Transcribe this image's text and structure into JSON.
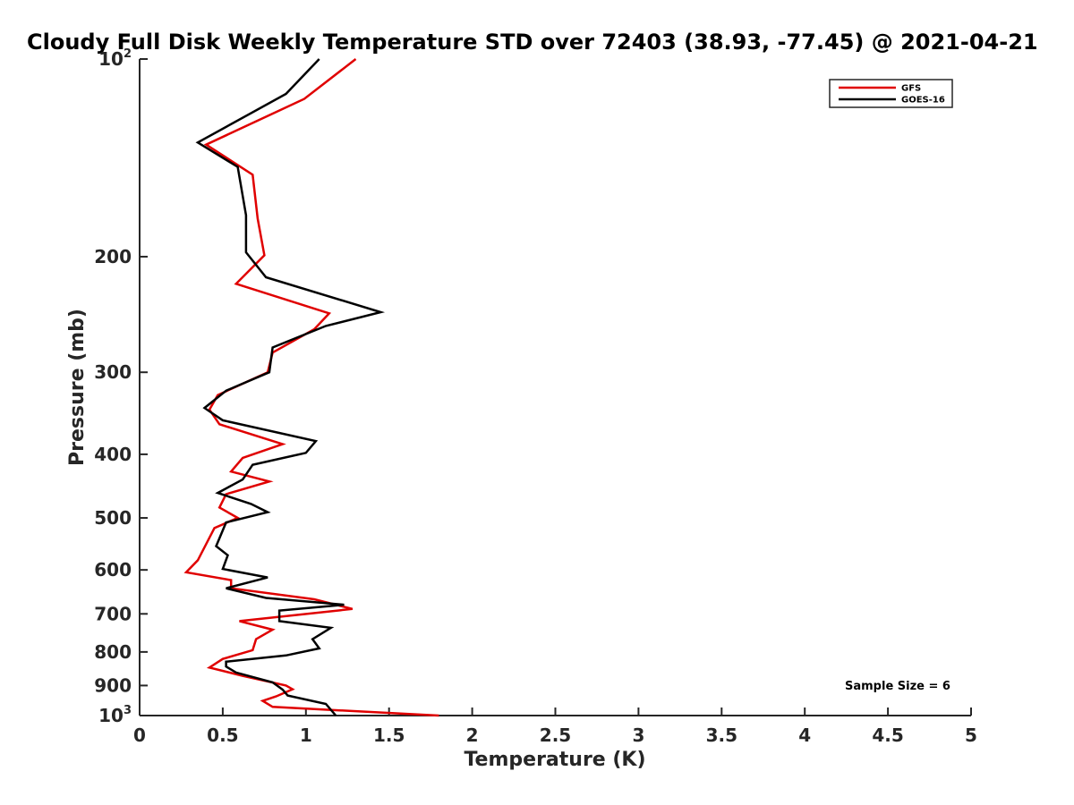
{
  "chart_data": {
    "type": "line",
    "title": "Cloudy Full Disk Weekly Temperature STD over 72403 (38.93, -77.45) @ 2021-04-21",
    "xlabel": "Temperature (K)",
    "ylabel": "Pressure (mb)",
    "xlim": [
      0,
      5
    ],
    "ylim": [
      100,
      1000
    ],
    "y_scale": "log",
    "y_reversed": true,
    "x_ticks": [
      {
        "value": 0,
        "label": "0"
      },
      {
        "value": 0.5,
        "label": "0.5"
      },
      {
        "value": 1,
        "label": "1"
      },
      {
        "value": 1.5,
        "label": "1.5"
      },
      {
        "value": 2,
        "label": "2"
      },
      {
        "value": 2.5,
        "label": "2.5"
      },
      {
        "value": 3,
        "label": "3"
      },
      {
        "value": 3.5,
        "label": "3.5"
      },
      {
        "value": 4,
        "label": "4"
      },
      {
        "value": 4.5,
        "label": "4.5"
      },
      {
        "value": 5,
        "label": "5"
      }
    ],
    "y_ticks": [
      {
        "value": 100,
        "label": "10",
        "exp": "2"
      },
      {
        "value": 200,
        "label": "200"
      },
      {
        "value": 300,
        "label": "300"
      },
      {
        "value": 400,
        "label": "400"
      },
      {
        "value": 500,
        "label": "500"
      },
      {
        "value": 600,
        "label": "600"
      },
      {
        "value": 700,
        "label": "700"
      },
      {
        "value": 800,
        "label": "800"
      },
      {
        "value": 900,
        "label": "900"
      },
      {
        "value": 1000,
        "label": "10",
        "exp": "3"
      }
    ],
    "grid": false,
    "legend_position": "top-right",
    "annotation": "Sample Size = 6",
    "series": [
      {
        "name": "GFS",
        "color": "#e00000",
        "points": [
          [
            1.3,
            100
          ],
          [
            0.99,
            115
          ],
          [
            0.4,
            135
          ],
          [
            0.68,
            150
          ],
          [
            0.71,
            175
          ],
          [
            0.75,
            199
          ],
          [
            0.58,
            220
          ],
          [
            1.14,
            244
          ],
          [
            1.05,
            258
          ],
          [
            0.8,
            280
          ],
          [
            0.77,
            300
          ],
          [
            0.47,
            325
          ],
          [
            0.42,
            342
          ],
          [
            0.48,
            360
          ],
          [
            0.86,
            386
          ],
          [
            0.62,
            405
          ],
          [
            0.55,
            425
          ],
          [
            0.78,
            440
          ],
          [
            0.52,
            460
          ],
          [
            0.48,
            482
          ],
          [
            0.59,
            500
          ],
          [
            0.45,
            518
          ],
          [
            0.35,
            580
          ],
          [
            0.28,
            605
          ],
          [
            0.55,
            622
          ],
          [
            0.55,
            640
          ],
          [
            1.05,
            665
          ],
          [
            1.28,
            688
          ],
          [
            0.6,
            718
          ],
          [
            0.8,
            740
          ],
          [
            0.7,
            765
          ],
          [
            0.68,
            795
          ],
          [
            0.5,
            820
          ],
          [
            0.42,
            845
          ],
          [
            0.62,
            870
          ],
          [
            0.88,
            900
          ],
          [
            0.92,
            912
          ],
          [
            0.82,
            935
          ],
          [
            0.74,
            950
          ],
          [
            0.8,
            970
          ],
          [
            1.8,
            1000
          ]
        ]
      },
      {
        "name": "GOES-16",
        "color": "#000000",
        "points": [
          [
            1.08,
            100
          ],
          [
            0.88,
            113
          ],
          [
            0.35,
            134
          ],
          [
            0.59,
            146
          ],
          [
            0.64,
            173
          ],
          [
            0.64,
            197
          ],
          [
            0.76,
            215
          ],
          [
            1.45,
            243
          ],
          [
            1.12,
            255
          ],
          [
            0.8,
            275
          ],
          [
            0.78,
            300
          ],
          [
            0.52,
            320
          ],
          [
            0.39,
            340
          ],
          [
            0.5,
            355
          ],
          [
            1.06,
            382
          ],
          [
            1.0,
            398
          ],
          [
            0.68,
            415
          ],
          [
            0.62,
            437
          ],
          [
            0.47,
            458
          ],
          [
            0.67,
            476
          ],
          [
            0.77,
            490
          ],
          [
            0.52,
            508
          ],
          [
            0.46,
            552
          ],
          [
            0.53,
            570
          ],
          [
            0.5,
            598
          ],
          [
            0.77,
            616
          ],
          [
            0.52,
            640
          ],
          [
            0.76,
            662
          ],
          [
            1.23,
            678
          ],
          [
            0.84,
            692
          ],
          [
            0.84,
            718
          ],
          [
            1.15,
            735
          ],
          [
            1.04,
            765
          ],
          [
            1.08,
            790
          ],
          [
            0.88,
            810
          ],
          [
            0.52,
            828
          ],
          [
            0.52,
            842
          ],
          [
            0.58,
            860
          ],
          [
            0.8,
            890
          ],
          [
            0.86,
            913
          ],
          [
            0.89,
            932
          ],
          [
            1.12,
            960
          ],
          [
            1.18,
            1000
          ]
        ]
      }
    ]
  }
}
